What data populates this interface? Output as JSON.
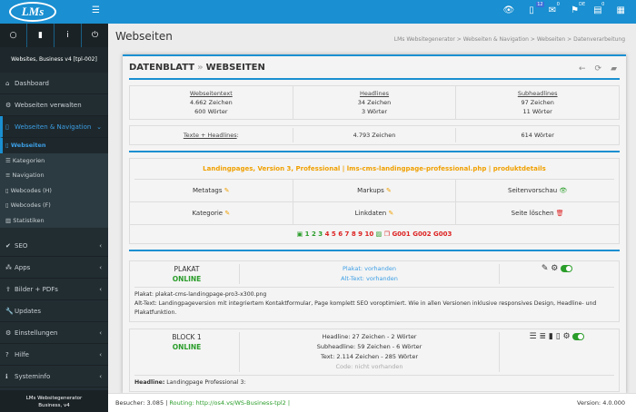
{
  "topbar": {
    "logo": "LMs",
    "badges": {
      "notes": "12",
      "mail": "0",
      "flag": "DE",
      "msg": "0"
    }
  },
  "sidebar": {
    "title": "Websites, Business v4 [tpl-002]",
    "items": [
      {
        "label": "Dashboard",
        "icon": "home-icon"
      },
      {
        "label": "Webseiten verwalten",
        "icon": "gear-icon"
      },
      {
        "label": "Webseiten & Navigation",
        "icon": "file-icon"
      }
    ],
    "sub": [
      {
        "label": "Webseiten"
      },
      {
        "label": "Kategorien"
      },
      {
        "label": "Navigation"
      },
      {
        "label": "Webcodes (H)"
      },
      {
        "label": "Webcodes (F)"
      },
      {
        "label": "Statistiken"
      }
    ],
    "items2": [
      {
        "label": "SEO"
      },
      {
        "label": "Apps"
      },
      {
        "label": "Bilder + PDFs"
      },
      {
        "label": "Updates"
      },
      {
        "label": "Einstellungen"
      },
      {
        "label": "Hilfe"
      },
      {
        "label": "Systeminfo"
      }
    ],
    "footer1": "LMs Websitegenerator",
    "footer2": "Business, v4"
  },
  "page": {
    "title": "Webseiten",
    "breadcrumb": "LMs Websitegenerator > Webseiten & Navigation > Webseiten > Datenverarbeitung"
  },
  "panel": {
    "title1": "DATENBLATT",
    "sep": "»",
    "title2": "WEBSEITEN",
    "stats": [
      {
        "label": "Webseitentext",
        "chars": "4.662 Zeichen",
        "words": "600 Wörter"
      },
      {
        "label": "Headlines",
        "chars": "34 Zeichen",
        "words": "3 Wörter"
      },
      {
        "label": "Subheadlines",
        "chars": "97 Zeichen",
        "words": "11 Wörter"
      }
    ],
    "total": {
      "label": "Texte + Headlines",
      "chars": "4.793 Zeichen",
      "words": "614 Wörter"
    },
    "page_info": "Landingpages, Version 3, Professional | lms-cms-landingpage-professional.php | produktdetails",
    "actions": [
      "Metatags",
      "Markups",
      "Seitenvorschau",
      "Kategorie",
      "Linkdaten",
      "Seite löschen"
    ],
    "nums_green": [
      "1",
      "2",
      "3"
    ],
    "nums_red": [
      "4",
      "5",
      "6",
      "7",
      "8",
      "9",
      "10"
    ],
    "codes": [
      "G001",
      "G002",
      "G003"
    ]
  },
  "plakat": {
    "title": "PLAKAT",
    "status": "ONLINE",
    "line1": "Plakat: vorhanden",
    "line2": "Alt-Text: vorhanden",
    "file": "Plakat: plakat-cms-landingpage-pro3-x300.png",
    "alt": "Alt-Text: Landingpageversion mit integriertem Kontaktformular, Page komplett SEO voroptimiert. Wie in allen Versionen inklusive responsives Design, Headline- und Plakatfunktion."
  },
  "block1": {
    "title": "BLOCK 1",
    "status": "ONLINE",
    "l1": "Headline: 27 Zeichen - 2 Wörter",
    "l2": "Subheadline: 59 Zeichen - 6 Wörter",
    "l3": "Text: 2.114 Zeichen - 285 Wörter",
    "l4": "Code: nicht vorhanden",
    "hl_label": "Headline:",
    "hl": "Landingpage Professional 3:"
  },
  "footer": {
    "visitors": "Besucher: 3.085 |",
    "routing": "Routing: http://os4.vs/WS-Business-tpl2 |",
    "version": "Version: 4.0.000"
  }
}
